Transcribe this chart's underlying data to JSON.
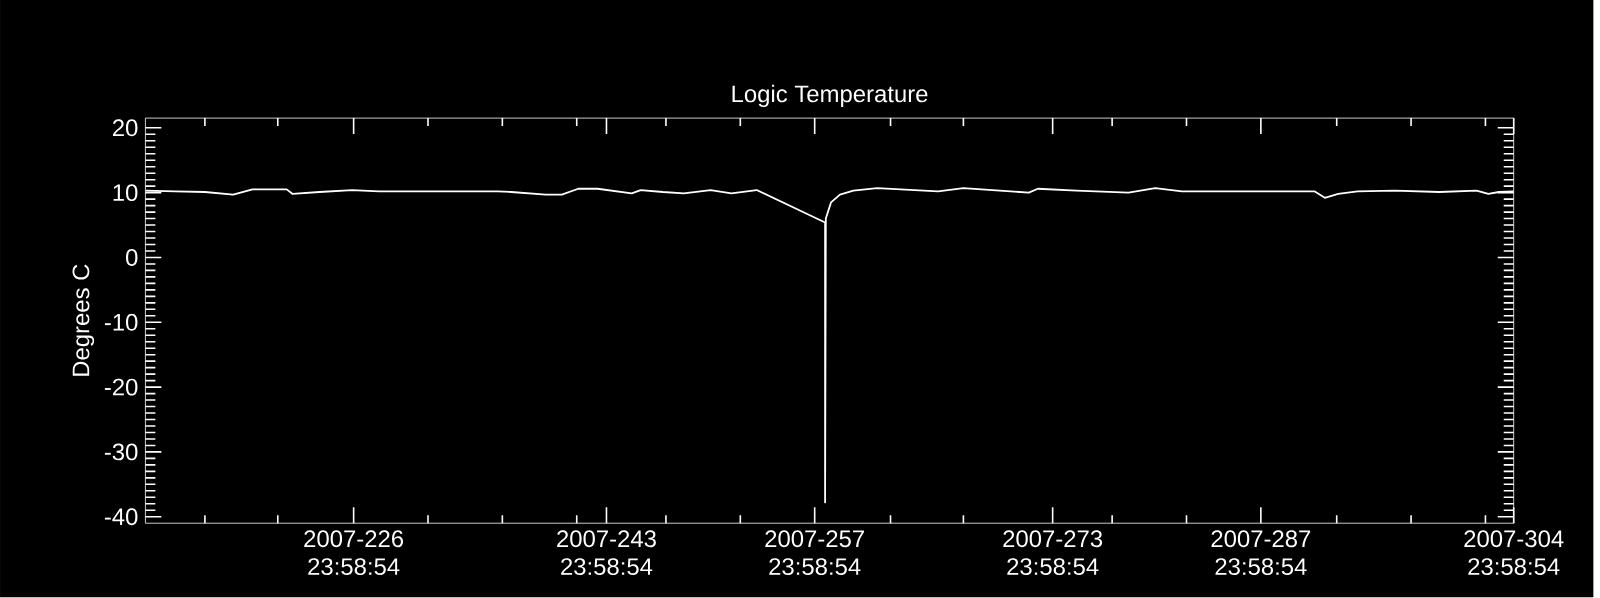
{
  "chart_data": {
    "type": "line",
    "title": "Logic Temperature",
    "ylabel": "Degrees C",
    "xlim": [
      "2007-07-31T23:58:54",
      "2007-10-31T23:58:54"
    ],
    "ylim": [
      -41,
      21.5
    ],
    "xticks": [
      {
        "value": "2007-08-04T23:59",
        "label": null
      },
      {
        "value": "2007-08-09T21:35",
        "label": null
      },
      {
        "value": "2007-08-14T23:58:54",
        "label": "2007-226 23:58:54"
      },
      {
        "value": "2007-08-19T23:59",
        "label": null
      },
      {
        "value": "2007-08-24T23:59",
        "label": null
      },
      {
        "value": "2007-08-29T23:59",
        "label": null
      },
      {
        "value": "2007-08-31T23:58:54",
        "label": "2007-243 23:58:54"
      },
      {
        "value": "2007-09-04T23:59",
        "label": null
      },
      {
        "value": "2007-09-09T23:59",
        "label": null
      },
      {
        "value": "2007-09-14T23:58:54",
        "label": "2007-257 23:58:54"
      },
      {
        "value": "2007-09-20T02:23",
        "label": null
      },
      {
        "value": "2007-09-24T23:59",
        "label": null
      },
      {
        "value": "2007-09-30T23:58:54",
        "label": "2007-273 23:58:54"
      },
      {
        "value": "2007-10-04T23:59",
        "label": null
      },
      {
        "value": "2007-10-09T23:59",
        "label": null
      },
      {
        "value": "2007-10-14T23:58:54",
        "label": "2007-287 23:58:54"
      },
      {
        "value": "2007-10-20T02:23",
        "label": null
      },
      {
        "value": "2007-10-25T02:23",
        "label": null
      },
      {
        "value": "2007-10-30T02:23",
        "label": null
      },
      {
        "value": "2007-10-31T23:58:54",
        "label": "2007-304 23:58:54"
      }
    ],
    "yticks": [
      -40,
      -30,
      -20,
      -10,
      0,
      10,
      20
    ],
    "marker": "none",
    "line_style": "solid",
    "series": [
      {
        "color": "#ffffff",
        "x": [
          "2007-07-31T23:59",
          "2007-08-02T23:59",
          "2007-08-04T23:59",
          "2007-08-06T21:35",
          "2007-08-08T04:47",
          "2007-08-10T11:59",
          "2007-08-10T21:35",
          "2007-08-12T16:47",
          "2007-08-14T21:35",
          "2007-08-16T16:47",
          "2007-08-24T16:47",
          "2007-08-25T14:23",
          "2007-08-27T21:35",
          "2007-08-28T23:59",
          "2007-08-30T02:23",
          "2007-08-31T09:35",
          "2007-09-02T16:47",
          "2007-09-03T07:11",
          "2007-09-04T19:11",
          "2007-09-06T04:47",
          "2007-09-07T23:59",
          "2007-09-09T09:35",
          "2007-09-11T02:23",
          "2007-09-15T16:47",
          "2007-09-15T16:47",
          "2007-09-15T17:59",
          "2007-09-16T02:23",
          "2007-09-16T16:47",
          "2007-09-17T14:23",
          "2007-09-19T04:47",
          "2007-09-23T07:11",
          "2007-09-24T23:59",
          "2007-09-29T09:35",
          "2007-09-29T23:59",
          "2007-10-02T14:23",
          "2007-10-06T02:23",
          "2007-10-07T21:35",
          "2007-10-09T16:47",
          "2007-10-12T09:35",
          "2007-10-18T14:23",
          "2007-10-19T07:11",
          "2007-10-20T04:47",
          "2007-10-21T11:59",
          "2007-10-23T23:59",
          "2007-10-26T23:59",
          "2007-10-29T11:59",
          "2007-10-30T07:11",
          "2007-10-30T23:59",
          "2007-10-31T23:58:54"
        ],
        "values": [
          10.3,
          10.2,
          10.1,
          9.7,
          10.5,
          10.5,
          9.8,
          10.1,
          10.4,
          10.2,
          10.2,
          10.1,
          9.7,
          9.7,
          10.6,
          10.6,
          9.9,
          10.4,
          10.1,
          9.9,
          10.4,
          9.9,
          10.4,
          5.4,
          -37.8,
          6.0,
          8.5,
          9.7,
          10.3,
          10.7,
          10.2,
          10.7,
          10.0,
          10.6,
          10.3,
          10.0,
          10.7,
          10.2,
          10.2,
          10.2,
          9.2,
          9.8,
          10.2,
          10.3,
          10.1,
          10.3,
          9.8,
          10.1,
          10.2
        ]
      }
    ]
  }
}
